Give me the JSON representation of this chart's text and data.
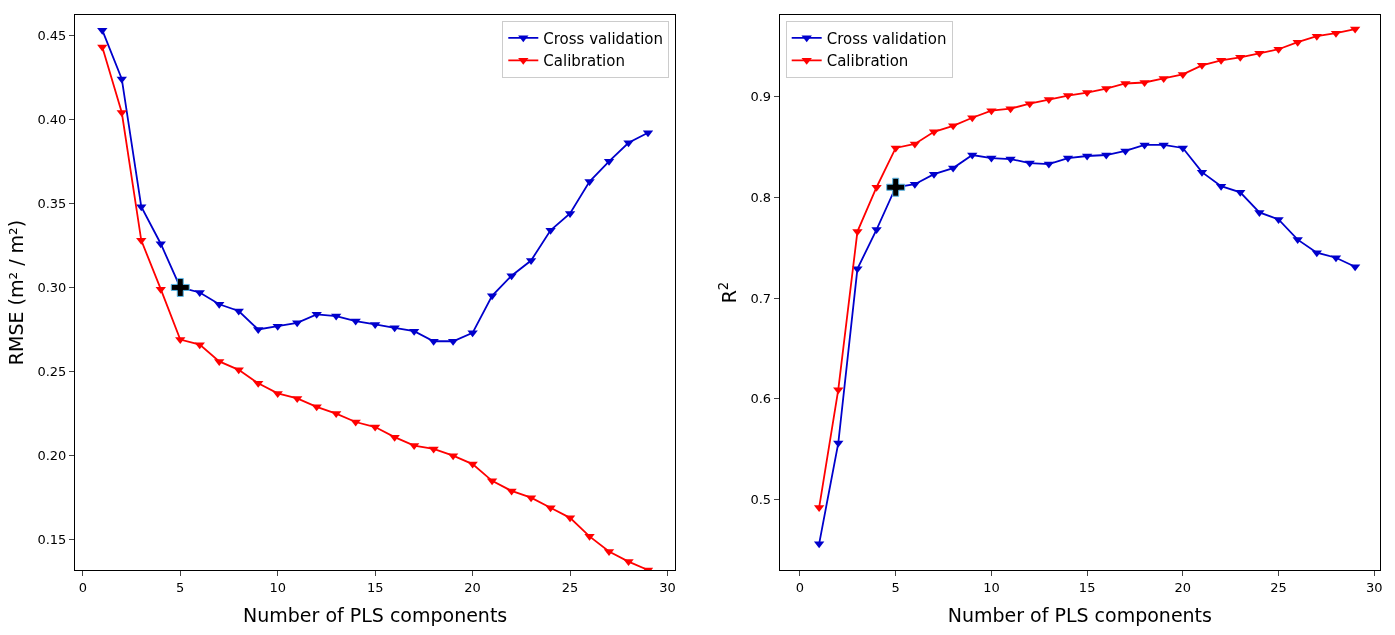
{
  "chart_data": [
    {
      "type": "line",
      "xlabel": "Number of PLS components",
      "ylabel": "RMSE (m² / m²)",
      "x": [
        1,
        2,
        3,
        4,
        5,
        6,
        7,
        8,
        9,
        10,
        11,
        12,
        13,
        14,
        15,
        16,
        17,
        18,
        19,
        20,
        21,
        22,
        23,
        24,
        25,
        26,
        27,
        28,
        29
      ],
      "xlim": [
        -0.4,
        30.4
      ],
      "xticks": [
        0,
        5,
        10,
        15,
        20,
        25,
        30
      ],
      "ylim": [
        0.132,
        0.462
      ],
      "yticks": [
        {
          "value": 0.15,
          "label": "0.15"
        },
        {
          "value": 0.2,
          "label": "0.20"
        },
        {
          "value": 0.25,
          "label": "0.25"
        },
        {
          "value": 0.3,
          "label": "0.30"
        },
        {
          "value": 0.35,
          "label": "0.35"
        },
        {
          "value": 0.4,
          "label": "0.40"
        },
        {
          "value": 0.45,
          "label": "0.45"
        }
      ],
      "legend": "top right",
      "marker": "triangle",
      "line_style": "solid",
      "series": [
        {
          "name": "Cross validation",
          "color": "#0000cc",
          "values": [
            0.453,
            0.424,
            0.348,
            0.326,
            0.3,
            0.297,
            0.29,
            0.286,
            0.275,
            0.277,
            0.279,
            0.284,
            0.283,
            0.28,
            0.278,
            0.276,
            0.274,
            0.268,
            0.268,
            0.273,
            0.295,
            0.307,
            0.316,
            0.334,
            0.344,
            0.363,
            0.375,
            0.386,
            0.392
          ]
        },
        {
          "name": "Calibration",
          "color": "#ff0000",
          "values": [
            0.443,
            0.404,
            0.328,
            0.299,
            0.269,
            0.266,
            0.256,
            0.251,
            0.243,
            0.237,
            0.234,
            0.229,
            0.225,
            0.22,
            0.217,
            0.211,
            0.206,
            0.204,
            0.2,
            0.195,
            0.185,
            0.179,
            0.175,
            0.169,
            0.163,
            0.152,
            0.143,
            0.137,
            0.132
          ]
        },
        {
          "type": "scatter",
          "marker": "cross",
          "color": "#000000",
          "x": [
            5
          ],
          "values": [
            0.3
          ]
        }
      ]
    },
    {
      "type": "line",
      "xlabel": "Number of PLS components",
      "ylabel": "R$^{2}$",
      "x": [
        1,
        2,
        3,
        4,
        5,
        6,
        7,
        8,
        9,
        10,
        11,
        12,
        13,
        14,
        15,
        16,
        17,
        18,
        19,
        20,
        21,
        22,
        23,
        24,
        25,
        26,
        27,
        28,
        29
      ],
      "xlim": [
        -1.06,
        30.3
      ],
      "xticks": [
        0,
        5,
        10,
        15,
        20,
        25,
        30
      ],
      "ylim": [
        0.43,
        0.981
      ],
      "yticks": [
        0.5,
        0.6,
        0.7,
        0.8,
        0.9
      ],
      "legend": "top left",
      "marker": "triangle",
      "line_style": "solid",
      "series": [
        {
          "name": "Cross validation",
          "color": "#0000cc",
          "values": [
            0.456,
            0.556,
            0.729,
            0.768,
            0.81,
            0.813,
            0.823,
            0.829,
            0.842,
            0.839,
            0.838,
            0.834,
            0.833,
            0.839,
            0.841,
            0.842,
            0.846,
            0.852,
            0.852,
            0.849,
            0.825,
            0.811,
            0.805,
            0.785,
            0.778,
            0.758,
            0.745,
            0.74,
            0.731
          ]
        },
        {
          "name": "Calibration",
          "color": "#ff0000",
          "values": [
            0.492,
            0.609,
            0.766,
            0.81,
            0.849,
            0.853,
            0.865,
            0.871,
            0.879,
            0.886,
            0.888,
            0.893,
            0.897,
            0.901,
            0.904,
            0.908,
            0.913,
            0.914,
            0.918,
            0.922,
            0.931,
            0.936,
            0.939,
            0.943,
            0.947,
            0.954,
            0.96,
            0.963,
            0.967
          ]
        },
        {
          "type": "scatter",
          "marker": "cross",
          "color": "#000000",
          "x": [
            5
          ],
          "values": [
            0.81
          ]
        }
      ]
    }
  ]
}
